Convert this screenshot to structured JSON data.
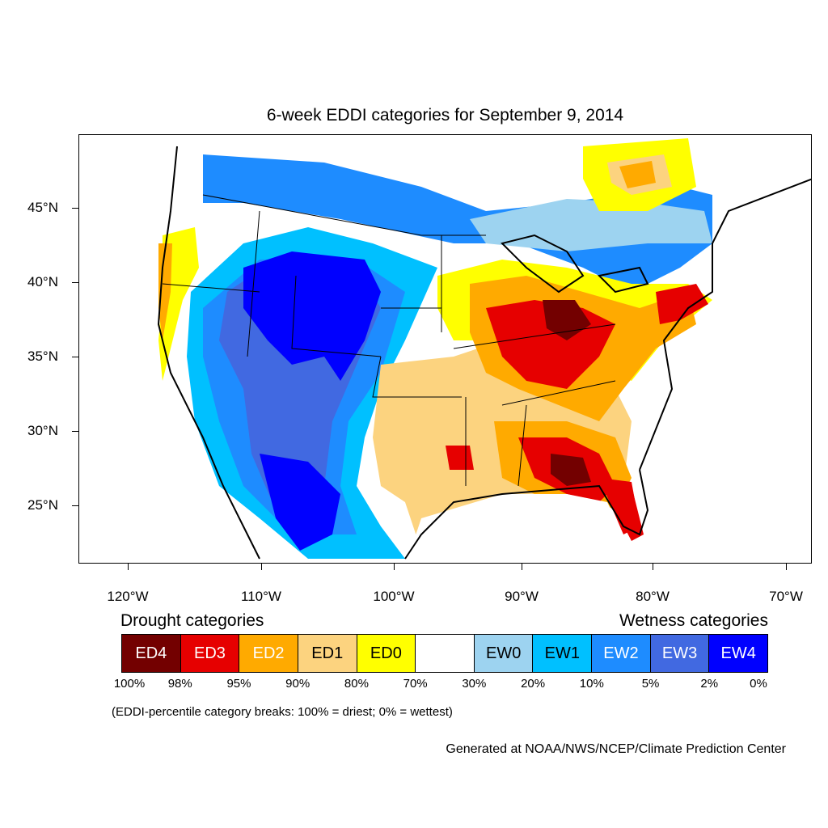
{
  "title": "6-week EDDI categories for September 9, 2014",
  "lat_labels": [
    "45°N",
    "40°N",
    "35°N",
    "30°N",
    "25°N"
  ],
  "lon_labels": [
    "120°W",
    "110°W",
    "100°W",
    "90°W",
    "80°W",
    "70°W"
  ],
  "legend": {
    "drought_heading": "Drought categories",
    "wetness_heading": "Wetness categories",
    "categories": [
      {
        "label": "ED4",
        "color": "#730000",
        "text_color": "#ffffff"
      },
      {
        "label": "ED3",
        "color": "#e60000",
        "text_color": "#ffffff"
      },
      {
        "label": "ED2",
        "color": "#ffaa00",
        "text_color": "#ffffff"
      },
      {
        "label": "ED1",
        "color": "#fcd37f",
        "text_color": "#000000"
      },
      {
        "label": "ED0",
        "color": "#ffff00",
        "text_color": "#000000"
      },
      {
        "label": "",
        "color": "#ffffff",
        "text_color": "#000000"
      },
      {
        "label": "EW0",
        "color": "#9dd3f0",
        "text_color": "#000000"
      },
      {
        "label": "EW1",
        "color": "#00c0ff",
        "text_color": "#000000"
      },
      {
        "label": "EW2",
        "color": "#1e8cff",
        "text_color": "#ffffff"
      },
      {
        "label": "EW3",
        "color": "#4169e1",
        "text_color": "#ffffff"
      },
      {
        "label": "EW4",
        "color": "#0000ff",
        "text_color": "#ffffff"
      }
    ],
    "percentiles": [
      "100%",
      "98%",
      "95%",
      "90%",
      "80%",
      "70%",
      "30%",
      "20%",
      "10%",
      "5%",
      "2%",
      "0%"
    ]
  },
  "note": "(EDDI-percentile category breaks: 100% = driest; 0% = wettest)",
  "credit": "Generated at NOAA/NWS/NCEP/Climate Prediction Center"
}
